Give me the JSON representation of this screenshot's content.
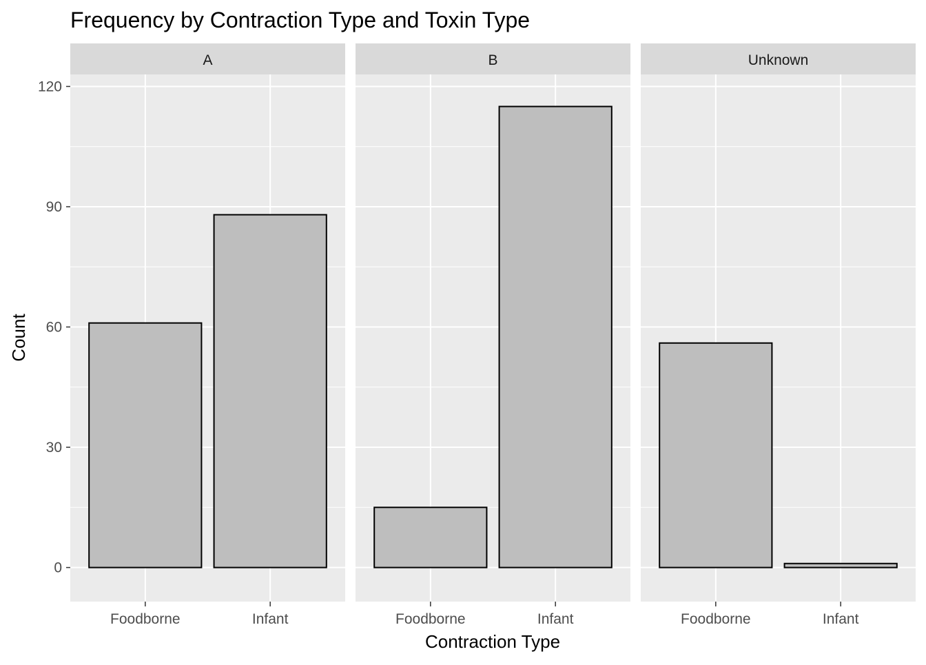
{
  "chart_data": {
    "type": "bar",
    "title": "Frequency by Contraction Type and Toxin Type",
    "xlabel": "Contraction Type",
    "ylabel": "Count",
    "ylim": [
      -8.5,
      123
    ],
    "yticks": [
      0,
      30,
      60,
      90,
      120
    ],
    "grid": true,
    "categories": [
      "Foodborne",
      "Infant"
    ],
    "facets": [
      {
        "name": "A",
        "values": [
          61,
          88
        ]
      },
      {
        "name": "B",
        "values": [
          15,
          115
        ]
      },
      {
        "name": "Unknown",
        "values": [
          56,
          1
        ]
      }
    ]
  },
  "colors": {
    "panel_bg": "#EBEBEB",
    "strip_bg": "#D9D9D9",
    "grid_major": "#FFFFFF",
    "bar_fill": "#BEBEBE",
    "bar_stroke": "#000000",
    "tick_text": "#4D4D4D",
    "strip_text": "#1A1A1A",
    "title_text": "#000000"
  }
}
